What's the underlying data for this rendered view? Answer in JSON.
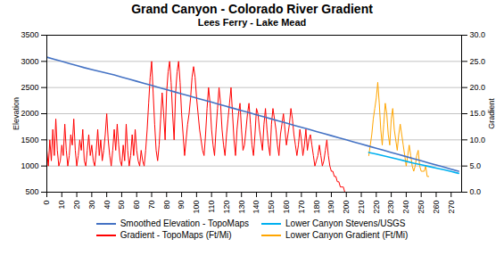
{
  "chart_data": {
    "type": "line",
    "title": "Grand Canyon - Colorado  River Gradient",
    "subtitle": "Lees Ferry - Lake Mead",
    "ylabel": "Elevation",
    "y2label": "Gradient",
    "xlim": [
      0,
      277
    ],
    "xticks": [
      0,
      10,
      20,
      30,
      40,
      50,
      60,
      70,
      80,
      90,
      100,
      110,
      120,
      130,
      140,
      150,
      160,
      170,
      180,
      190,
      200,
      210,
      220,
      230,
      240,
      250,
      260,
      270
    ],
    "ylim": [
      500,
      3500
    ],
    "yticks": [
      500,
      1000,
      1500,
      2000,
      2500,
      3000,
      3500
    ],
    "y2lim": [
      0,
      30
    ],
    "y2ticks": [
      {
        "value": 0,
        "label": "0.0"
      },
      {
        "value": 5,
        "label": "5.0"
      },
      {
        "value": 10,
        "label": "10.0"
      },
      {
        "value": 15,
        "label": "15.0"
      },
      {
        "value": 20,
        "label": "20.0"
      },
      {
        "value": 25,
        "label": "25.0"
      },
      {
        "value": 30,
        "label": "30.0"
      }
    ],
    "grid": true,
    "legend": "bottom",
    "series": [
      {
        "name": "Smoothed Elevation - TopoMaps",
        "color": "#4472c4",
        "axis": "y",
        "x": [
          0,
          5,
          10,
          15,
          20,
          25,
          30,
          35,
          40,
          45,
          50,
          55,
          60,
          65,
          70,
          75,
          80,
          85,
          90,
          95,
          100,
          105,
          110,
          115,
          120,
          125,
          130,
          135,
          140,
          145,
          150,
          155,
          160,
          165,
          170,
          175,
          180,
          185,
          190,
          195,
          200,
          205,
          210,
          215,
          220,
          225,
          230,
          235,
          240,
          245,
          250,
          255,
          260,
          265,
          270,
          275
        ],
        "values": [
          3080,
          3040,
          3000,
          2960,
          2920,
          2880,
          2845,
          2810,
          2775,
          2740,
          2700,
          2660,
          2620,
          2580,
          2540,
          2500,
          2460,
          2420,
          2380,
          2340,
          2300,
          2260,
          2220,
          2180,
          2140,
          2100,
          2060,
          2020,
          1980,
          1940,
          1900,
          1860,
          1820,
          1780,
          1740,
          1700,
          1660,
          1620,
          1580,
          1540,
          1500,
          1460,
          1420,
          1380,
          1340,
          1300,
          1260,
          1220,
          1180,
          1140,
          1100,
          1060,
          1020,
          980,
          940,
          900
        ]
      },
      {
        "name": "Lower Canyon Stevens/USGS",
        "color": "#00b0f0",
        "axis": "y",
        "x": [
          215,
          220,
          225,
          230,
          235,
          240,
          245,
          250,
          255,
          260,
          265,
          270,
          275
        ],
        "values": [
          1260,
          1230,
          1195,
          1160,
          1125,
          1090,
          1055,
          1025,
          992,
          960,
          930,
          895,
          860
        ]
      },
      {
        "name": "Gradient - TopoMaps (Ft/Mi)",
        "color": "#ff0000",
        "axis": "y2",
        "x": [
          0,
          1,
          2,
          3,
          4,
          5,
          6,
          7,
          8,
          9,
          10,
          11,
          12,
          13,
          14,
          15,
          16,
          17,
          18,
          19,
          20,
          21,
          22,
          23,
          24,
          25,
          26,
          27,
          28,
          29,
          30,
          31,
          32,
          33,
          34,
          35,
          36,
          37,
          38,
          39,
          40,
          41,
          42,
          43,
          44,
          45,
          46,
          47,
          48,
          49,
          50,
          51,
          52,
          53,
          54,
          55,
          56,
          57,
          58,
          59,
          60,
          61,
          62,
          63,
          64,
          65,
          66,
          67,
          68,
          69,
          70,
          71,
          72,
          73,
          74,
          75,
          76,
          77,
          78,
          79,
          80,
          81,
          82,
          83,
          84,
          85,
          86,
          87,
          88,
          89,
          90,
          91,
          92,
          93,
          94,
          95,
          96,
          97,
          98,
          99,
          100,
          101,
          102,
          103,
          104,
          105,
          106,
          107,
          108,
          109,
          110,
          111,
          112,
          113,
          114,
          115,
          116,
          117,
          118,
          119,
          120,
          121,
          122,
          123,
          124,
          125,
          126,
          127,
          128,
          129,
          130,
          131,
          132,
          133,
          134,
          135,
          136,
          137,
          138,
          139,
          140,
          141,
          142,
          143,
          144,
          145,
          146,
          147,
          148,
          149,
          150,
          151,
          152,
          153,
          154,
          155,
          156,
          157,
          158,
          159,
          160,
          161,
          162,
          163,
          164,
          165,
          166,
          167,
          168,
          169,
          170,
          171,
          172,
          173,
          174,
          175,
          176,
          177,
          178,
          179,
          180,
          181,
          182,
          183,
          184,
          185,
          186,
          187,
          188,
          189,
          190,
          191,
          192,
          193,
          194,
          195,
          196,
          197,
          198,
          199,
          200,
          201,
          202,
          203,
          204,
          205,
          206,
          207,
          208,
          209,
          210,
          211,
          212,
          213,
          214,
          215,
          216,
          217,
          218,
          219,
          220
        ],
        "values": [
          8,
          5,
          10,
          6,
          12,
          7,
          14,
          8,
          5,
          6,
          9,
          7,
          13,
          8,
          5,
          7,
          11,
          9,
          14,
          8,
          5,
          7,
          10,
          8,
          12,
          6,
          5,
          8,
          11,
          7,
          9,
          6,
          5,
          8,
          12,
          7,
          10,
          6,
          8,
          11,
          15,
          10,
          7,
          5,
          8,
          12,
          8,
          13,
          9,
          6,
          5,
          9,
          6,
          13,
          8,
          5,
          7,
          11,
          7,
          12,
          8,
          6,
          5,
          8,
          6,
          5,
          8,
          12,
          17,
          22,
          25,
          19,
          13,
          8,
          6,
          9,
          14,
          19,
          15,
          10,
          19,
          23,
          25,
          21,
          15,
          10,
          19,
          23,
          25,
          21,
          15,
          11,
          7,
          10,
          13,
          15,
          18,
          22,
          24,
          22,
          18,
          15,
          12,
          10,
          8,
          7,
          11,
          16,
          20,
          17,
          12,
          9,
          7,
          12,
          16,
          20,
          17,
          12,
          9,
          7,
          11,
          14,
          17,
          20,
          15,
          10,
          7,
          12,
          15,
          17,
          12,
          8,
          9,
          12,
          15,
          17,
          13,
          9,
          7,
          11,
          16,
          15,
          12,
          10,
          8,
          13,
          16,
          12,
          9,
          7,
          13,
          16,
          14,
          12,
          9,
          7,
          11,
          13,
          15,
          12,
          9,
          11,
          13,
          16,
          14,
          11,
          9,
          7,
          9,
          12,
          10,
          7,
          9,
          12,
          8,
          10,
          11,
          9,
          7,
          5,
          6,
          7,
          9,
          7,
          5,
          6,
          8,
          10,
          7,
          5,
          4,
          4,
          3,
          3,
          2,
          2,
          1,
          1,
          1,
          0,
          0,
          0,
          0,
          0,
          0,
          0,
          0,
          0,
          0,
          0,
          0,
          0,
          0,
          0,
          0,
          0,
          0,
          0,
          0,
          0,
          0
        ]
      },
      {
        "name": "Lower Canyon Gradient (Ft/Mi)",
        "color": "#ffa500",
        "axis": "y2",
        "x": [
          215,
          216,
          217,
          218,
          219,
          220,
          221,
          222,
          223,
          224,
          225,
          226,
          227,
          228,
          229,
          230,
          231,
          232,
          233,
          234,
          235,
          236,
          237,
          238,
          239,
          240,
          241,
          242,
          243,
          244,
          245,
          246,
          247,
          248,
          249,
          250,
          251,
          252,
          253,
          254,
          255
        ],
        "values": [
          7,
          9,
          11,
          14,
          16,
          18,
          21,
          17,
          12,
          9,
          13,
          17,
          15,
          11,
          9,
          14,
          16,
          12,
          10,
          8,
          11,
          13,
          11,
          9,
          7,
          5,
          7,
          9,
          7,
          5,
          4,
          5,
          7,
          8,
          5,
          4,
          4,
          4,
          5,
          3,
          3
        ]
      }
    ]
  }
}
